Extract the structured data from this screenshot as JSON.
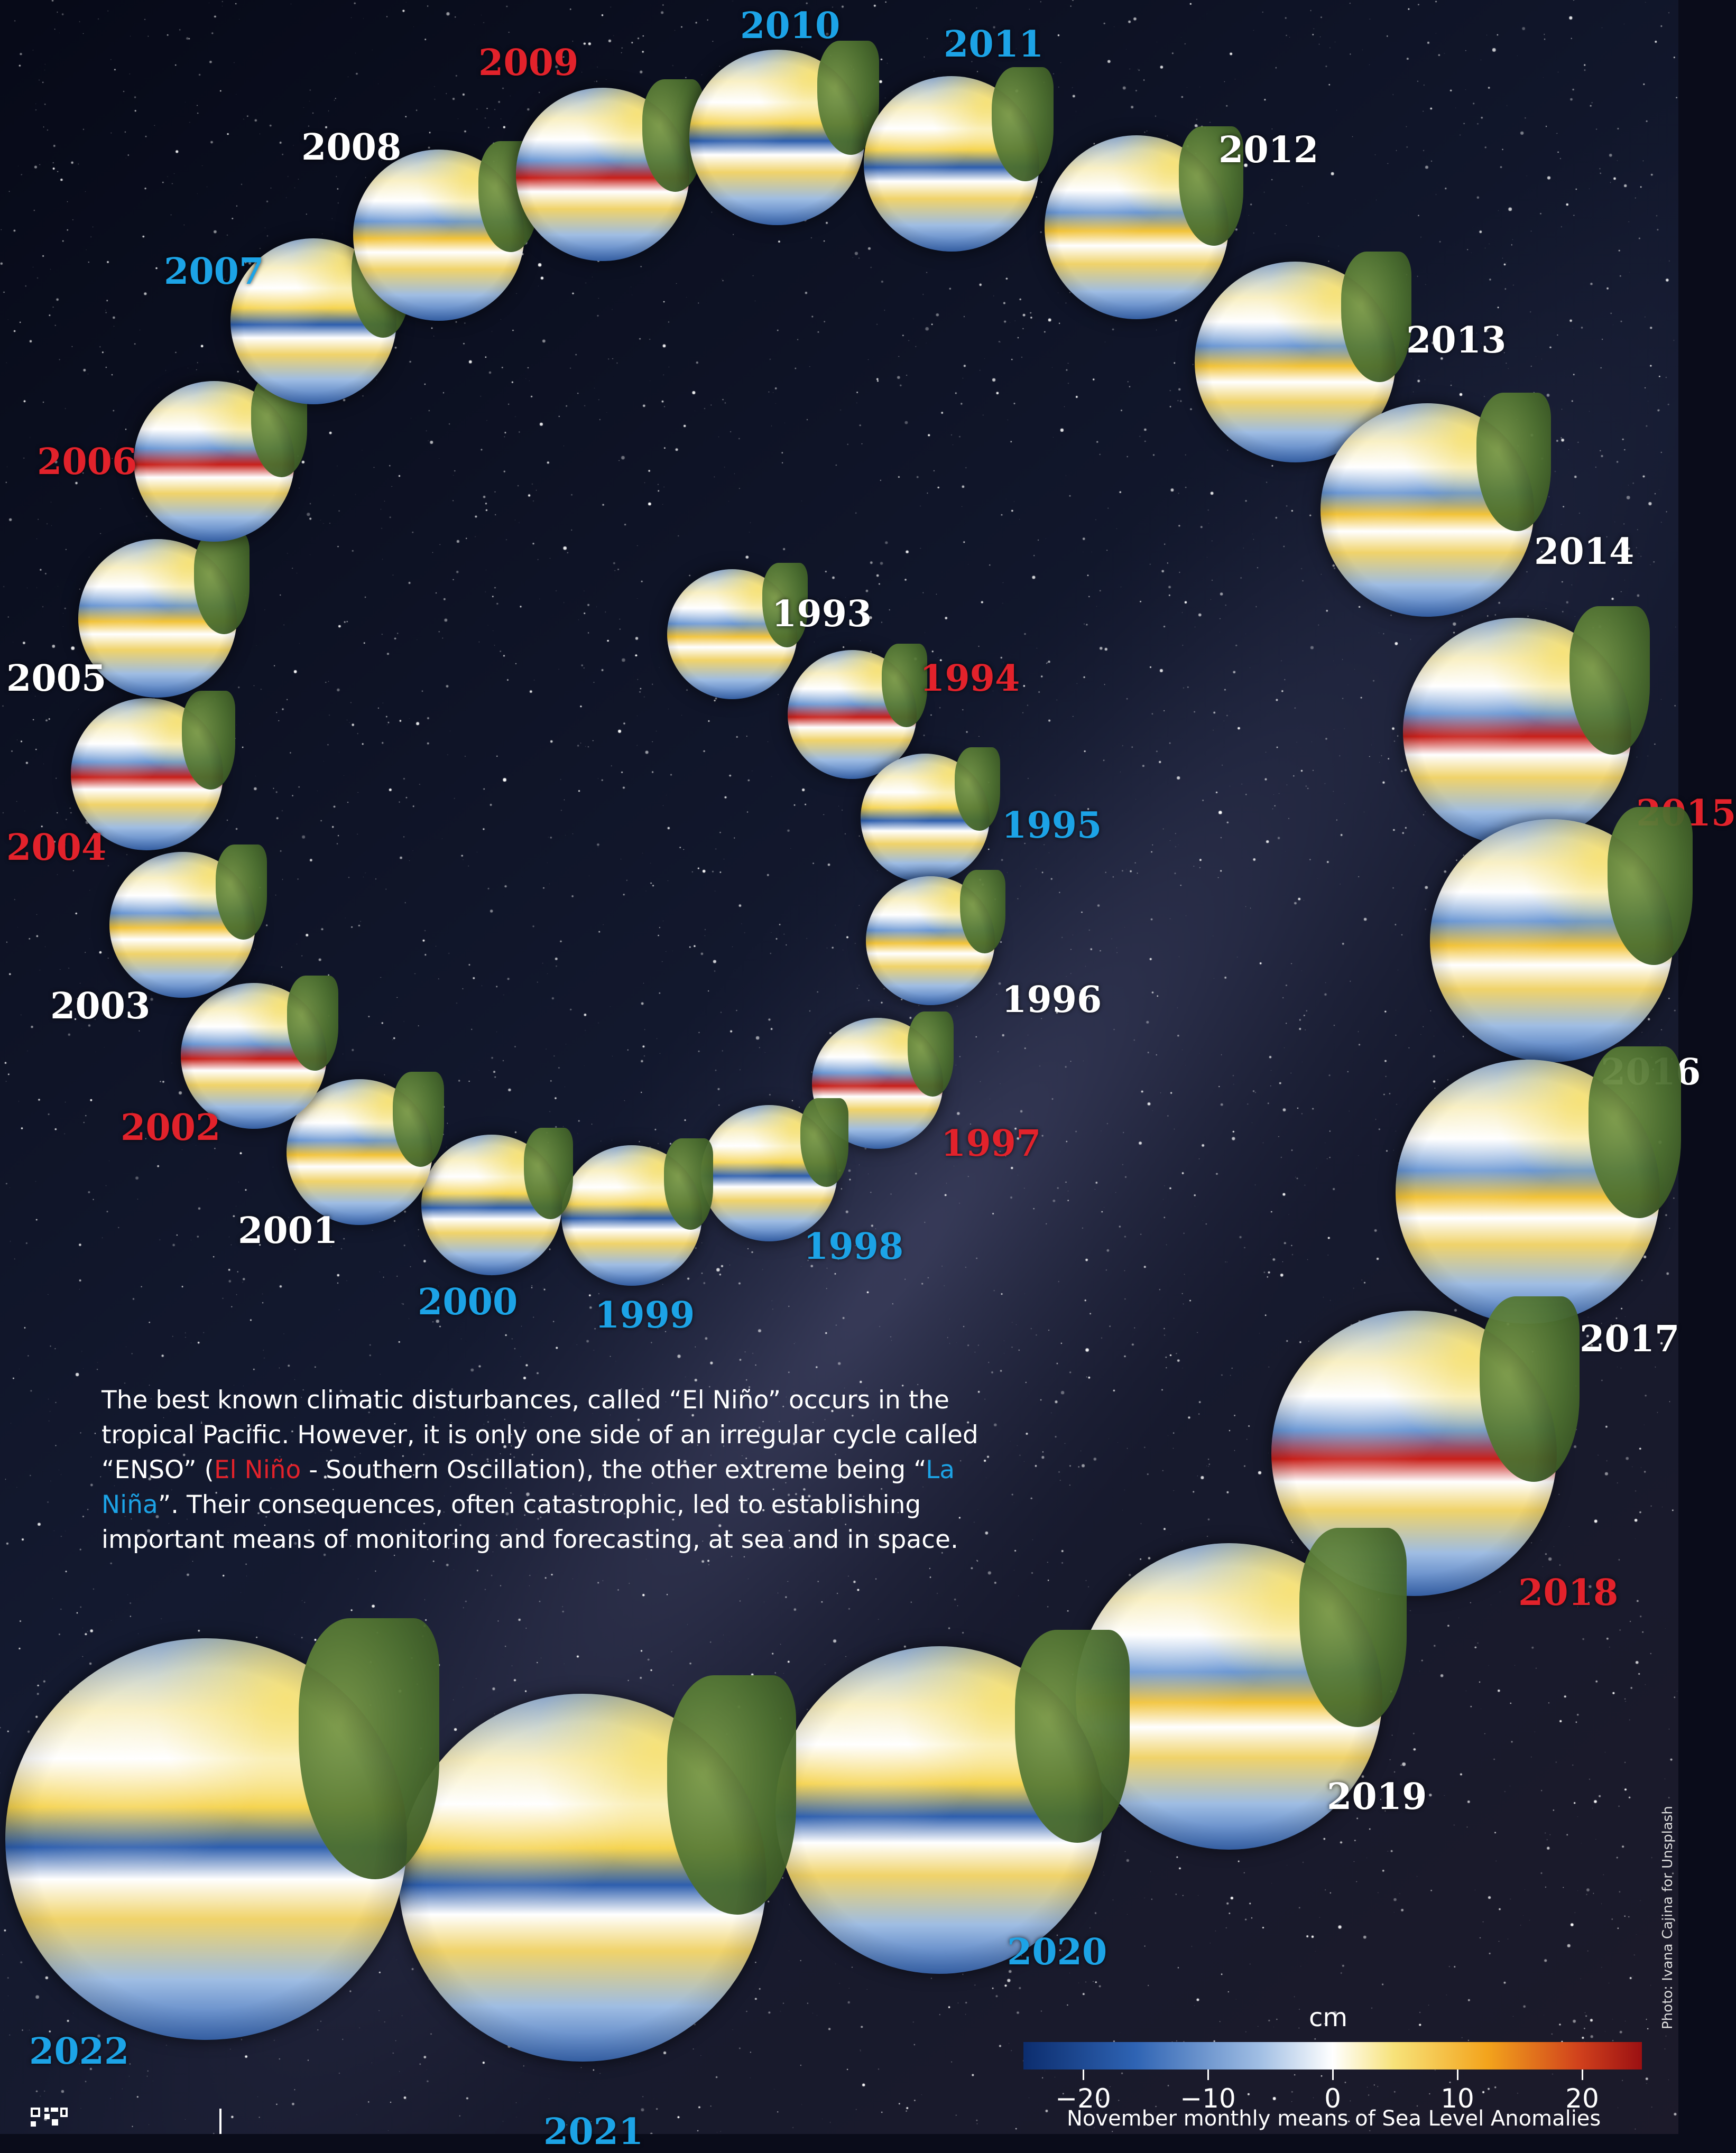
{
  "years": [
    {
      "label": "1993",
      "phase": "neutral"
    },
    {
      "label": "1994",
      "phase": "elnino"
    },
    {
      "label": "1995",
      "phase": "lanina"
    },
    {
      "label": "1996",
      "phase": "neutral"
    },
    {
      "label": "1997",
      "phase": "elnino"
    },
    {
      "label": "1998",
      "phase": "lanina"
    },
    {
      "label": "1999",
      "phase": "lanina"
    },
    {
      "label": "2000",
      "phase": "lanina"
    },
    {
      "label": "2001",
      "phase": "neutral"
    },
    {
      "label": "2002",
      "phase": "elnino"
    },
    {
      "label": "2003",
      "phase": "neutral"
    },
    {
      "label": "2004",
      "phase": "elnino"
    },
    {
      "label": "2005",
      "phase": "neutral"
    },
    {
      "label": "2006",
      "phase": "elnino"
    },
    {
      "label": "2007",
      "phase": "lanina"
    },
    {
      "label": "2008",
      "phase": "neutral"
    },
    {
      "label": "2009",
      "phase": "elnino"
    },
    {
      "label": "2010",
      "phase": "lanina"
    },
    {
      "label": "2011",
      "phase": "lanina"
    },
    {
      "label": "2012",
      "phase": "neutral"
    },
    {
      "label": "2013",
      "phase": "neutral"
    },
    {
      "label": "2014",
      "phase": "neutral"
    },
    {
      "label": "2015",
      "phase": "elnino"
    },
    {
      "label": "2016",
      "phase": "neutral"
    },
    {
      "label": "2017",
      "phase": "neutral"
    },
    {
      "label": "2018",
      "phase": "elnino"
    },
    {
      "label": "2019",
      "phase": "neutral"
    },
    {
      "label": "2020",
      "phase": "lanina"
    },
    {
      "label": "2021",
      "phase": "lanina"
    },
    {
      "label": "2022",
      "phase": "lanina"
    }
  ],
  "intro": {
    "part1": "The best known climatic disturbances, called “El Niño” occurs in the tropical Pacific. However, it is only one side of an irregular cycle called “ENSO” (",
    "el_nino": "El Niño",
    "part2": " - Southern Oscillation), the other extreme being “",
    "la_nina": "La Niña",
    "part3": "”. Their consequences, often catastrophic, led to establishing important means of monitoring and forecasting, at sea and in space."
  },
  "colorbar": {
    "unit": "cm",
    "ticks": [
      "−20",
      "−10",
      "0",
      "10",
      "20"
    ],
    "caption": "November monthly means of Sea Level Anomalies"
  },
  "credit": "Photo: Ivana Cajina for Unsplash",
  "colors": {
    "el_nino": "#e2222b",
    "la_nina": "#1ca3e6",
    "neutral": "#ffffff"
  }
}
